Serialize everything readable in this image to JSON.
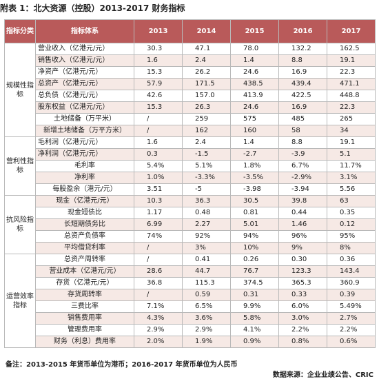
{
  "title": "附表 1：北大资源（控股）2013-2017 财务指标",
  "header": {
    "category": "指标分类",
    "indicator": "指标体系",
    "years": [
      "2013",
      "2014",
      "2015",
      "2016",
      "2017"
    ]
  },
  "sections": [
    {
      "category": "规模性指标",
      "rows": [
        {
          "label": "营业收入（亿港元/元）",
          "center": false,
          "values": [
            "30.3",
            "47.1",
            "78.0",
            "132.2",
            "162.5"
          ]
        },
        {
          "label": "销售收入（亿港元/元）",
          "center": false,
          "values": [
            "1.6",
            "2.4",
            "1.4",
            "8.8",
            "19.1"
          ]
        },
        {
          "label": "净资产（亿港元/元）",
          "center": false,
          "values": [
            "15.3",
            "26.2",
            "24.6",
            "16.9",
            "22.3"
          ]
        },
        {
          "label": "总资产（亿港元/元）",
          "center": false,
          "values": [
            "57.9",
            "171.5",
            "438.5",
            "439.4",
            "471.1"
          ]
        },
        {
          "label": "总负债（亿港元/元）",
          "center": false,
          "values": [
            "42.6",
            "157.0",
            "413.9",
            "422.5",
            "448.8"
          ]
        },
        {
          "label": "股东权益（亿港元/元）",
          "center": false,
          "values": [
            "15.3",
            "26.3",
            "24.6",
            "16.9",
            "22.3"
          ]
        },
        {
          "label": "土地储备（万平米）",
          "center": true,
          "values": [
            "/",
            "259",
            "575",
            "485",
            "265"
          ]
        },
        {
          "label": "新增土地储备（万平方米）",
          "center": true,
          "values": [
            "/",
            "162",
            "160",
            "58",
            "34"
          ]
        }
      ]
    },
    {
      "category": "营利性指标",
      "rows": [
        {
          "label": "毛利润（亿港元/元）",
          "center": false,
          "values": [
            "1.6",
            "2.4",
            "1.4",
            "8.8",
            "19.1"
          ]
        },
        {
          "label": "净利润（亿港元/元）",
          "center": false,
          "values": [
            "0.3",
            "-1.5",
            "-2.7",
            "-3.9",
            "5.1"
          ]
        },
        {
          "label": "毛利率",
          "center": true,
          "values": [
            "5.4%",
            "5.1%",
            "1.8%",
            "6.7%",
            "11.7%"
          ]
        },
        {
          "label": "净利率",
          "center": true,
          "values": [
            "1.0%",
            "-3.3%",
            "-3.5%",
            "-2.9%",
            "3.1%"
          ]
        },
        {
          "label": "每股盈余（港元/元）",
          "center": true,
          "values": [
            "3.51",
            "-5",
            "-3.98",
            "-3.94",
            "5.56"
          ]
        }
      ]
    },
    {
      "category": "抗风险指标",
      "rows": [
        {
          "label": "现金（亿港元/元）",
          "center": true,
          "values": [
            "10.3",
            "36.3",
            "30.5",
            "39.8",
            "63"
          ]
        },
        {
          "label": "现金短债比",
          "center": true,
          "values": [
            "1.17",
            "0.48",
            "0.81",
            "0.44",
            "0.35"
          ]
        },
        {
          "label": "长短期债务比",
          "center": true,
          "values": [
            "6.99",
            "2.27",
            "5.01",
            "1.46",
            "0.12"
          ]
        },
        {
          "label": "总资产负债率",
          "center": true,
          "values": [
            "74%",
            "92%",
            "94%",
            "96%",
            "95%"
          ]
        },
        {
          "label": "平均借贷利率",
          "center": true,
          "values": [
            "/",
            "3%",
            "10%",
            "9%",
            "8%"
          ]
        }
      ]
    },
    {
      "category": "运营效率指标",
      "rows": [
        {
          "label": "总资产周转率",
          "center": true,
          "values": [
            "/",
            "0.41",
            "0.26",
            "0.30",
            "0.36"
          ]
        },
        {
          "label": "营业成本（亿港元/元）",
          "center": true,
          "values": [
            "28.6",
            "44.7",
            "76.7",
            "123.3",
            "143.4"
          ]
        },
        {
          "label": "存货（亿港元/元）",
          "center": true,
          "values": [
            "36.8",
            "115.3",
            "374.5",
            "365.3",
            "360.9"
          ]
        },
        {
          "label": "存货周转率",
          "center": true,
          "values": [
            "/",
            "0.59",
            "0.31",
            "0.33",
            "0.39"
          ]
        },
        {
          "label": "三费比率",
          "center": true,
          "values": [
            "7.1%",
            "6.5%",
            "9.9%",
            "6.0%",
            "5.49%"
          ]
        },
        {
          "label": "销售费用率",
          "center": true,
          "values": [
            "4.3%",
            "3.6%",
            "5.8%",
            "3.0%",
            "2.7%"
          ]
        },
        {
          "label": "管理费用率",
          "center": true,
          "values": [
            "2.9%",
            "2.9%",
            "4.1%",
            "2.2%",
            "2.2%"
          ]
        },
        {
          "label": "财务（利息）费用率",
          "center": true,
          "values": [
            "2.0%",
            "1.9%",
            "0.9%",
            "0.8%",
            "0.6%"
          ]
        }
      ]
    }
  ],
  "note": "备注：2013-2015 年货币单位为港币；2016-2017 年货币单位为人民币",
  "source": "数据来源：企业业绩公告、CRIC",
  "colors": {
    "header_bg": "#b95a5a",
    "alt_row_bg": "#f6e9e5",
    "border": "#b9b9b9"
  }
}
